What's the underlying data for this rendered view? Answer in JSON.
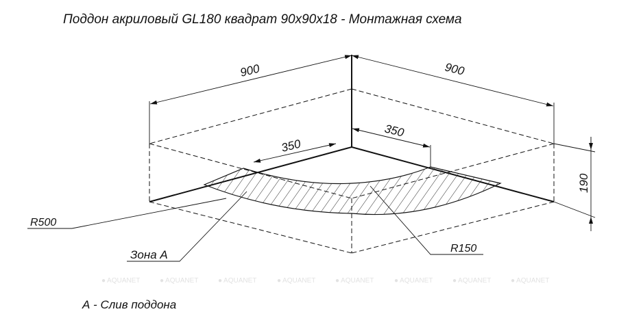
{
  "title": "Поддон акриловый  GL180 квадрат 90х90х18 - Монтажная схема",
  "dimensions": {
    "width_left": "900",
    "width_right": "900",
    "offset_left": "350",
    "offset_right": "350",
    "height": "190"
  },
  "labels": {
    "outer_radius": "R500",
    "zone": "Зона А",
    "inner_radius": "R150"
  },
  "watermark": [
    "AQUANET",
    "AQUANET",
    "AQUANET",
    "AQUANET",
    "AQUANET",
    "AQUANET",
    "AQUANET",
    "AQUANET"
  ],
  "legend": "А - Слив поддона",
  "colors": {
    "line": "#111111",
    "watermark": "#e2e2e2"
  }
}
